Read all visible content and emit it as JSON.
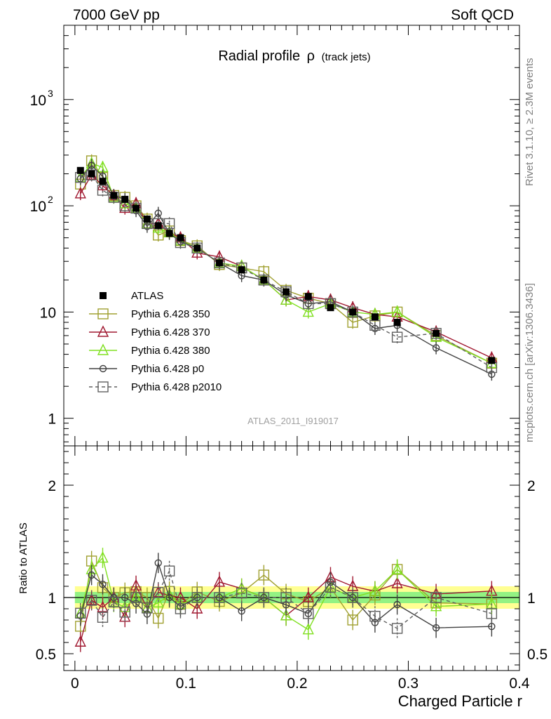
{
  "header": {
    "left": "7000 GeV pp",
    "right": "Soft QCD"
  },
  "side_text": {
    "top": "Rivet 3.1.10, ≥ 2.3M events",
    "bottom": "mcplots.cern.ch [arXiv:1306.3436]"
  },
  "reference_label": "ATLAS_2011_I919017",
  "chart_data": {
    "type": "scatter",
    "title": "Radial profile",
    "title_symbol": "ρ",
    "title_suffix": "(track jets)",
    "xlabel": "Charged Particle r",
    "ylabel_ratio": "Ratio to ATLAS",
    "xlim": [
      -0.01,
      0.4
    ],
    "ylim_main": [
      0.55,
      5000
    ],
    "yscale_main": "log",
    "ylim_ratio": [
      0.35,
      2.35
    ],
    "x_ticks": [
      0,
      0.1,
      0.2,
      0.3,
      0.4
    ],
    "x_tick_labels": [
      "0",
      "0.1",
      "0.2",
      "0.3",
      "0.4"
    ],
    "y_main_tick_labels": [
      "1",
      "10",
      "10",
      "3",
      "10",
      "2"
    ],
    "y_ratio_ticks": [
      0.5,
      1,
      2
    ],
    "y_ratio_tick_labels": [
      "0.5",
      "1",
      "2"
    ],
    "legend_position": "bottom-left",
    "x": [
      0.005,
      0.015,
      0.025,
      0.035,
      0.045,
      0.055,
      0.065,
      0.075,
      0.085,
      0.095,
      0.11,
      0.13,
      0.15,
      0.17,
      0.19,
      0.21,
      0.23,
      0.25,
      0.27,
      0.29,
      0.325,
      0.375
    ],
    "data": {
      "name": "ATLAS",
      "values": [
        215,
        200,
        170,
        125,
        115,
        95,
        75,
        65,
        55,
        50,
        40,
        29,
        25,
        20,
        15.5,
        14,
        11,
        10,
        9,
        8,
        6.3,
        3.5
      ]
    },
    "series": [
      {
        "name": "Pythia 6.428 350",
        "color": "#a0a030",
        "marker": "square-open",
        "dashed": false,
        "values": [
          160,
          265,
          185,
          125,
          120,
          100,
          75,
          53,
          58,
          47,
          42,
          28,
          26,
          24,
          16,
          13.5,
          12,
          8,
          9.2,
          10,
          6,
          3.3
        ]
      },
      {
        "name": "Pythia 6.428 370",
        "color": "#a01830",
        "marker": "triangle-open",
        "dashed": false,
        "values": [
          130,
          195,
          155,
          125,
          95,
          105,
          68,
          68,
          56,
          50,
          36,
          33,
          27,
          20,
          13,
          14,
          13,
          11,
          9.5,
          9,
          6.5,
          3.7
        ]
      },
      {
        "name": "Pythia 6.428 380",
        "color": "#80e020",
        "marker": "triangle-open",
        "dashed": false,
        "values": [
          185,
          250,
          230,
          120,
          105,
          95,
          68,
          62,
          56,
          47,
          40,
          29,
          27,
          20,
          13,
          10,
          12,
          10,
          9.5,
          10,
          5.8,
          3.3
        ]
      },
      {
        "name": "Pythia 6.428 p0",
        "color": "#404040",
        "marker": "circle-open",
        "dashed": false,
        "values": [
          180,
          240,
          190,
          125,
          115,
          90,
          64,
          85,
          55,
          46,
          40,
          29,
          22,
          20,
          14.5,
          12,
          12.5,
          10,
          7,
          7.5,
          4.6,
          2.6
        ]
      },
      {
        "name": "Pythia 6.428 p2010",
        "color": "#606060",
        "marker": "square-open",
        "dashed": true,
        "values": [
          185,
          195,
          140,
          120,
          100,
          95,
          68,
          68,
          68,
          45,
          40,
          29,
          26,
          20,
          15.5,
          12,
          12,
          10,
          7.5,
          5.8,
          6.3,
          3
        ]
      }
    ]
  }
}
